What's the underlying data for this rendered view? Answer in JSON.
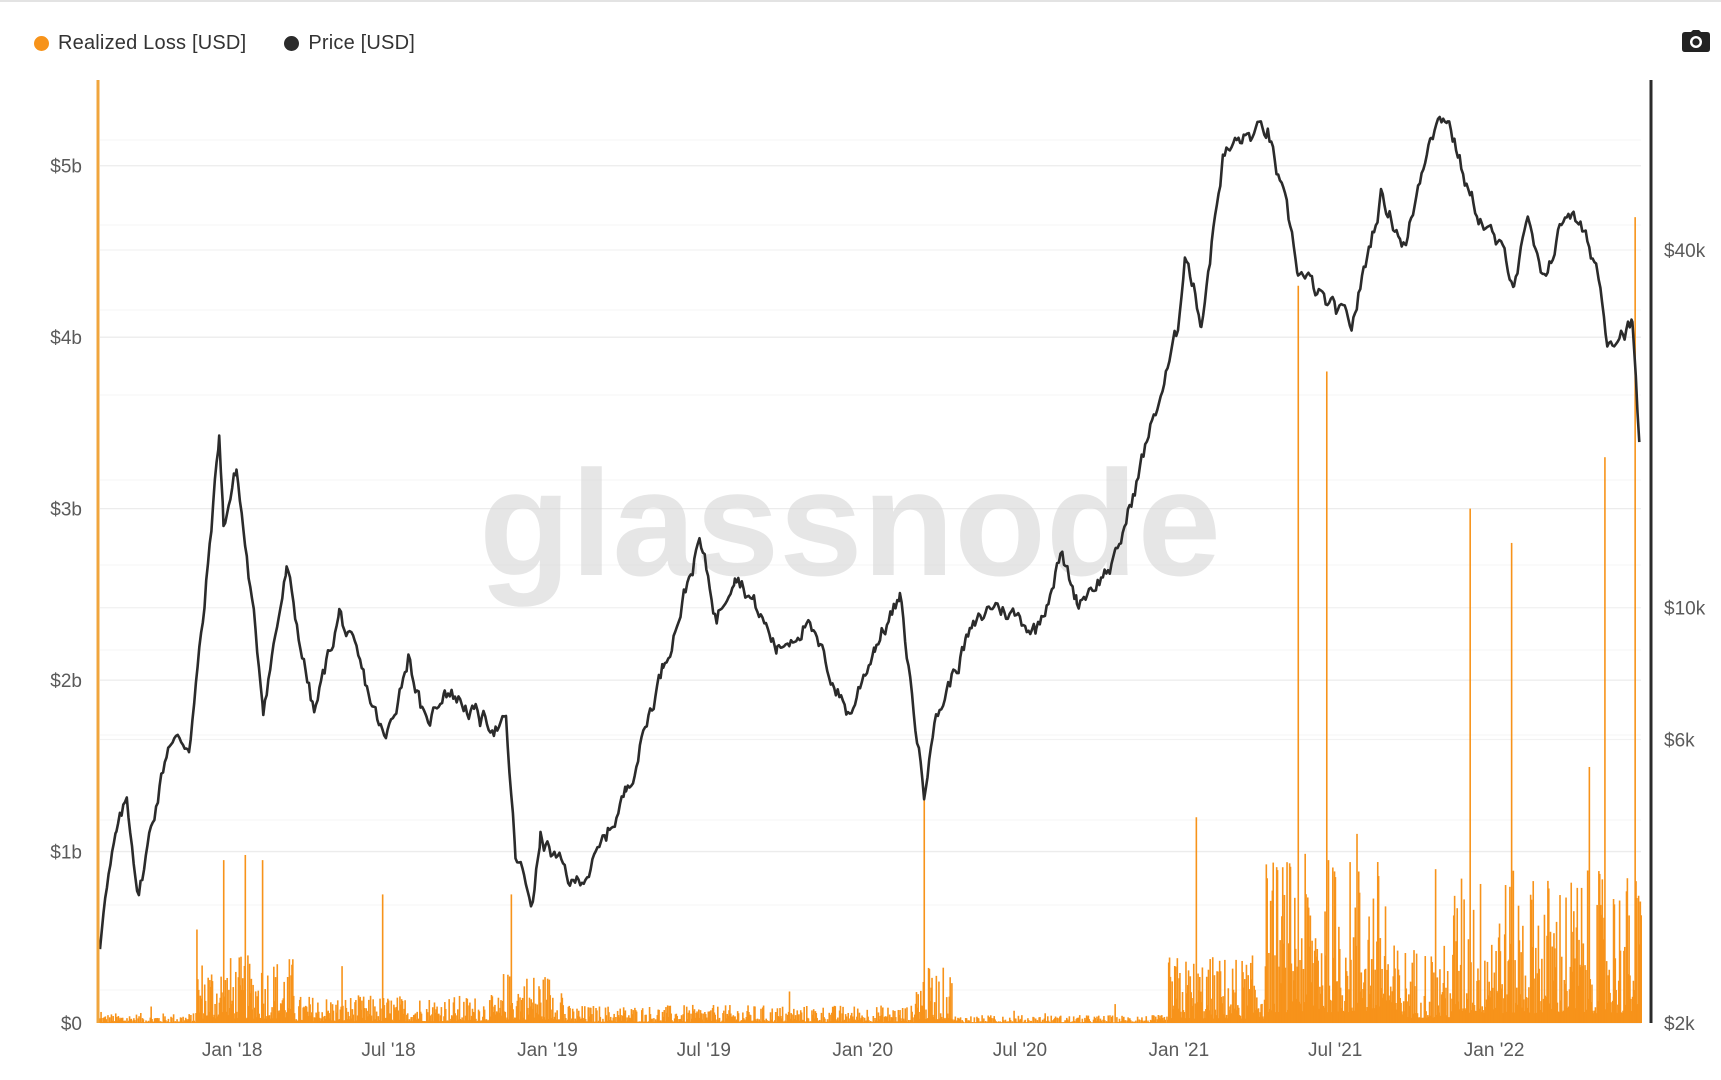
{
  "legend": {
    "items": [
      {
        "label": "Realized Loss [USD]",
        "color": "#f7931a"
      },
      {
        "label": "Price [USD]",
        "color": "#2b2b2b"
      }
    ]
  },
  "toolbar": {
    "camera_icon": "camera-icon"
  },
  "watermark": {
    "text": "glassnode"
  },
  "chart_data": {
    "type": "bar+line",
    "x_range": [
      "2017-08-01",
      "2022-06-20"
    ],
    "xticks": [
      "Jan '18",
      "Jul '18",
      "Jan '19",
      "Jul '19",
      "Jan '20",
      "Jul '20",
      "Jan '21",
      "Jul '21",
      "Jan '22"
    ],
    "xtick_dates": [
      "2018-01-01",
      "2018-07-01",
      "2019-01-01",
      "2019-07-01",
      "2020-01-01",
      "2020-07-01",
      "2021-01-01",
      "2021-07-01",
      "2022-01-01"
    ],
    "y_left": {
      "ticks": [
        "$0",
        "$1b",
        "$2b",
        "$3b",
        "$4b",
        "$5b"
      ],
      "tick_values": [
        0,
        1000000000,
        2000000000,
        3000000000,
        4000000000,
        5000000000
      ],
      "range": [
        0,
        5500000000
      ]
    },
    "y_right": {
      "scale": "log",
      "ticks": [
        "$2k",
        "$6k",
        "$10k",
        "$40k"
      ],
      "tick_values": [
        2000,
        6000,
        10000,
        40000
      ]
    },
    "series": [
      {
        "name": "Realized Loss [USD]",
        "axis": "left",
        "color": "#f7931a",
        "unit": "USD",
        "peaks": [
          {
            "date": "2017-12-22",
            "value": 950000000
          },
          {
            "date": "2018-01-16",
            "value": 980000000
          },
          {
            "date": "2018-02-05",
            "value": 950000000
          },
          {
            "date": "2018-06-24",
            "value": 750000000
          },
          {
            "date": "2018-11-20",
            "value": 750000000
          },
          {
            "date": "2020-03-12",
            "value": 1300000000
          },
          {
            "date": "2021-01-21",
            "value": 1200000000
          },
          {
            "date": "2021-05-19",
            "value": 4300000000
          },
          {
            "date": "2021-06-21",
            "value": 3800000000
          },
          {
            "date": "2021-12-04",
            "value": 3000000000
          },
          {
            "date": "2022-01-21",
            "value": 2800000000
          },
          {
            "date": "2022-05-09",
            "value": 3300000000
          },
          {
            "date": "2022-06-13",
            "value": 4700000000
          }
        ]
      },
      {
        "name": "Price [USD]",
        "axis": "right",
        "color": "#2b2b2b",
        "unit": "USD",
        "points": [
          [
            "2017-08-01",
            2700
          ],
          [
            "2017-08-05",
            3200
          ],
          [
            "2017-08-20",
            4100
          ],
          [
            "2017-09-01",
            4700
          ],
          [
            "2017-09-15",
            3300
          ],
          [
            "2017-10-01",
            4400
          ],
          [
            "2017-10-20",
            6000
          ],
          [
            "2017-11-12",
            5900
          ],
          [
            "2017-11-30",
            10000
          ],
          [
            "2017-12-17",
            19500
          ],
          [
            "2017-12-22",
            13800
          ],
          [
            "2018-01-06",
            17100
          ],
          [
            "2018-02-06",
            6900
          ],
          [
            "2018-03-05",
            11500
          ],
          [
            "2018-04-06",
            6600
          ],
          [
            "2018-05-05",
            9800
          ],
          [
            "2018-06-28",
            5900
          ],
          [
            "2018-07-24",
            8400
          ],
          [
            "2018-08-14",
            6200
          ],
          [
            "2018-09-04",
            7400
          ],
          [
            "2018-10-15",
            6500
          ],
          [
            "2018-11-14",
            6300
          ],
          [
            "2018-11-25",
            3800
          ],
          [
            "2018-12-15",
            3200
          ],
          [
            "2018-12-24",
            4100
          ],
          [
            "2019-01-31",
            3400
          ],
          [
            "2019-02-28",
            3800
          ],
          [
            "2019-04-02",
            4900
          ],
          [
            "2019-05-15",
            8000
          ],
          [
            "2019-06-26",
            12900
          ],
          [
            "2019-07-16",
            9600
          ],
          [
            "2019-08-06",
            11800
          ],
          [
            "2019-09-24",
            8500
          ],
          [
            "2019-10-26",
            9500
          ],
          [
            "2019-12-17",
            6600
          ],
          [
            "2020-01-15",
            8700
          ],
          [
            "2020-02-13",
            10300
          ],
          [
            "2020-03-12",
            4900
          ],
          [
            "2020-03-20",
            6200
          ],
          [
            "2020-04-30",
            8800
          ],
          [
            "2020-06-01",
            10200
          ],
          [
            "2020-07-20",
            9200
          ],
          [
            "2020-08-17",
            12300
          ],
          [
            "2020-09-05",
            10300
          ],
          [
            "2020-10-20",
            12000
          ],
          [
            "2020-11-25",
            19000
          ],
          [
            "2020-12-31",
            29000
          ],
          [
            "2021-01-08",
            40600
          ],
          [
            "2021-01-27",
            30400
          ],
          [
            "2021-02-21",
            57500
          ],
          [
            "2021-03-13",
            61200
          ],
          [
            "2021-04-14",
            63500
          ],
          [
            "2021-05-19",
            37000
          ],
          [
            "2021-06-22",
            32000
          ],
          [
            "2021-07-20",
            29800
          ],
          [
            "2021-08-23",
            49500
          ],
          [
            "2021-09-21",
            40700
          ],
          [
            "2021-10-20",
            65000
          ],
          [
            "2021-11-08",
            67600
          ],
          [
            "2021-12-04",
            49000
          ],
          [
            "2022-01-24",
            36000
          ],
          [
            "2022-02-10",
            44000
          ],
          [
            "2022-02-24",
            35000
          ],
          [
            "2022-03-28",
            47500
          ],
          [
            "2022-04-30",
            37700
          ],
          [
            "2022-05-12",
            28800
          ],
          [
            "2022-06-10",
            29900
          ],
          [
            "2022-06-18",
            19000
          ]
        ]
      }
    ]
  }
}
